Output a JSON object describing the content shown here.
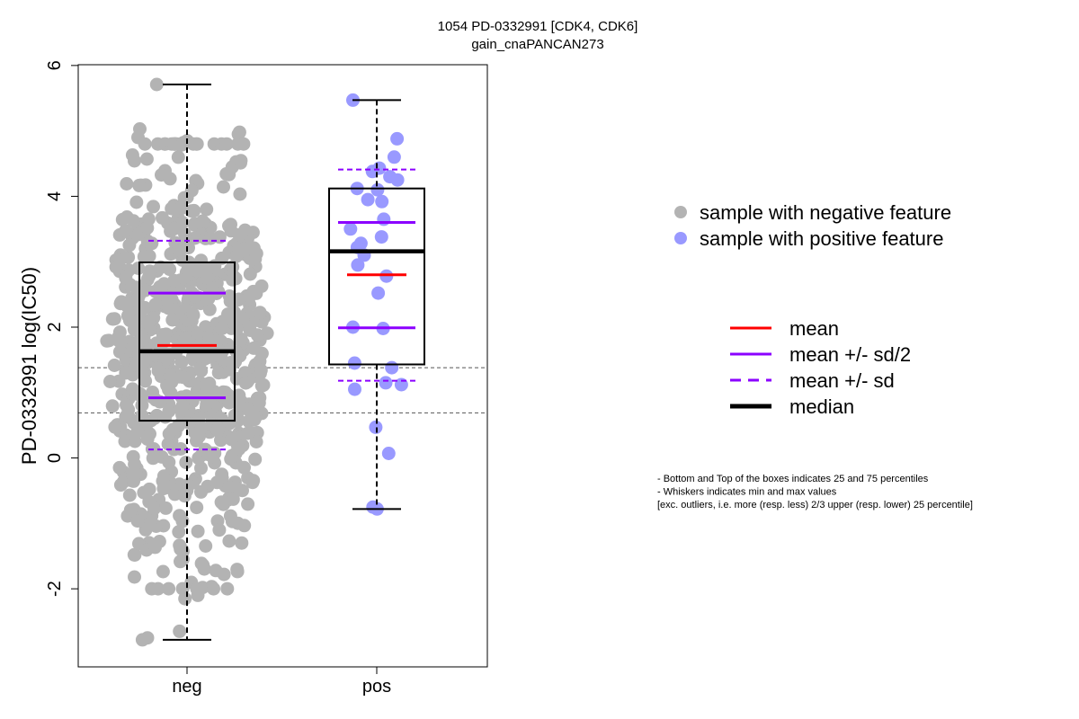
{
  "chart_data": {
    "type": "boxplot",
    "title": "1054 PD-0332991 [CDK4, CDK6]",
    "subtitle": "gain_cnaPANCAN273",
    "xlabel": "",
    "ylabel": "PD-0332991 log(IC50)",
    "ylim": [
      -3.1,
      6.05
    ],
    "yticks": [
      -2,
      0,
      2,
      4,
      6
    ],
    "categories": [
      "neg",
      "pos"
    ],
    "reference_lines": [
      1.38,
      0.69
    ],
    "groups": [
      {
        "name": "neg",
        "point_color": "#b3b3b3",
        "n_points": 720,
        "min": -2.78,
        "q1": 0.57,
        "median": 1.63,
        "q3": 2.99,
        "max": 5.71,
        "mean": 1.72,
        "mean_minus_half_sd": 0.92,
        "mean_plus_half_sd": 2.52,
        "mean_minus_sd": 0.13,
        "mean_plus_sd": 3.32,
        "points": [
          5.71,
          -2.78,
          -2.75,
          -2.65,
          -2.15,
          -2.1,
          -1.98,
          -1.82,
          -1.78,
          -1.72,
          -1.55,
          -1.48,
          -1.4,
          -1.3,
          -1.27,
          5.03,
          4.98,
          4.95,
          4.9,
          4.85,
          4.82
        ]
      },
      {
        "name": "pos",
        "point_color": "#9999ff",
        "min": -0.78,
        "q1": 1.43,
        "median": 3.16,
        "q3": 4.12,
        "max": 5.47,
        "mean": 2.8,
        "mean_minus_half_sd": 1.99,
        "mean_plus_half_sd": 3.6,
        "mean_minus_sd": 1.18,
        "mean_plus_sd": 4.41,
        "points": [
          5.47,
          4.88,
          4.6,
          4.43,
          4.38,
          4.3,
          4.25,
          4.12,
          4.1,
          3.95,
          3.92,
          3.65,
          3.5,
          3.38,
          3.28,
          3.22,
          3.1,
          2.95,
          2.78,
          2.52,
          2.0,
          1.98,
          1.45,
          1.38,
          1.15,
          1.12,
          1.05,
          0.47,
          0.07,
          -0.75,
          -0.78
        ]
      }
    ],
    "legend": {
      "points": [
        {
          "label": "sample with negative feature",
          "color": "#b3b3b3"
        },
        {
          "label": "sample with positive feature",
          "color": "#9999ff"
        }
      ],
      "lines": [
        {
          "label": "mean",
          "color": "#ff0000",
          "style": "solid"
        },
        {
          "label": "mean +/- sd/2",
          "color": "#8b00ff",
          "style": "solid"
        },
        {
          "label": "mean +/- sd",
          "color": "#8b00ff",
          "style": "dashed"
        },
        {
          "label": "median",
          "color": "#000000",
          "style": "bold"
        }
      ]
    },
    "notes": [
      "- Bottom and Top of the boxes indicates 25 and 75 percentiles",
      "- Whiskers indicates min and max values",
      "[exc. outliers, i.e. more (resp. less) 2/3 upper (resp. lower) 25 percentile]"
    ]
  }
}
